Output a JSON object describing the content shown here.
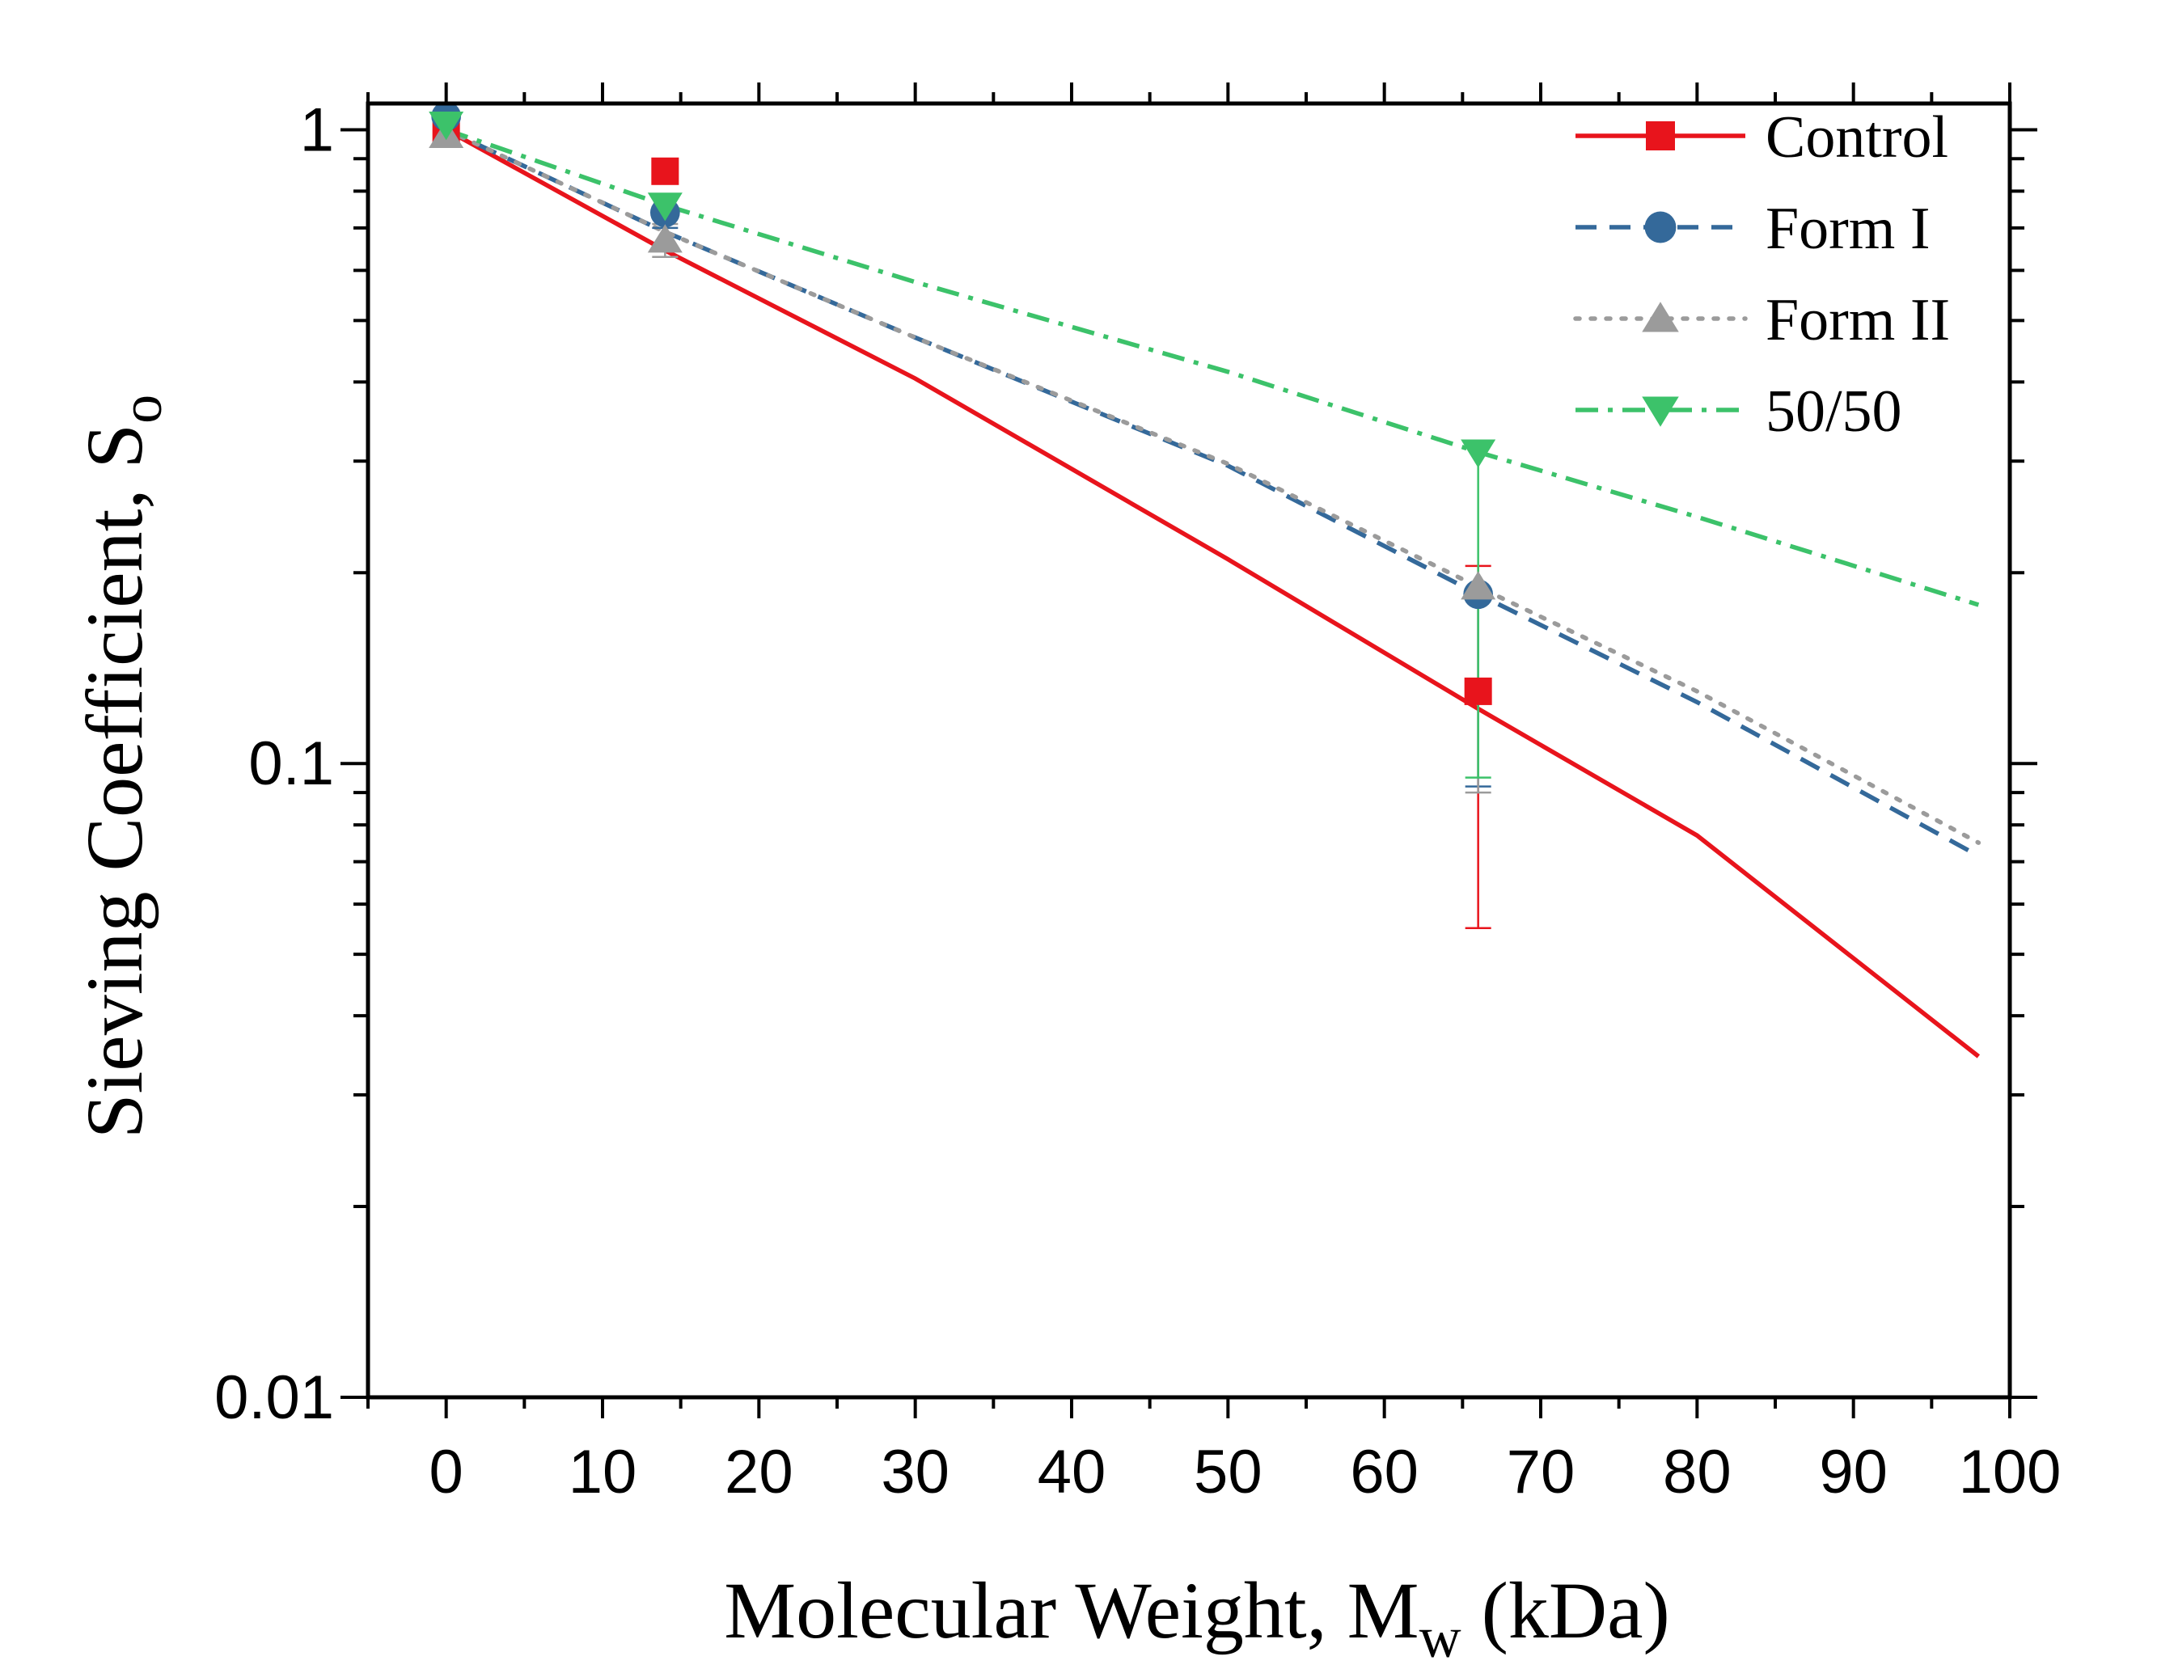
{
  "chart_data": {
    "type": "line",
    "title": "",
    "xlabel": {
      "main": "Molecular Weight, M",
      "sub": "w",
      "suffix": " (kDa)"
    },
    "ylabel": {
      "main": "Sieving Coefficient, S",
      "sub": "o"
    },
    "xlim": [
      -5,
      100
    ],
    "ylim": [
      0.01,
      1.1
    ],
    "yscale": "log",
    "x_ticks": [
      0,
      10,
      20,
      30,
      40,
      50,
      60,
      70,
      80,
      90,
      100
    ],
    "x_tick_labels": [
      "0",
      "10",
      "20",
      "30",
      "40",
      "50",
      "60",
      "70",
      "80",
      "90",
      "100"
    ],
    "y_ticks": [
      0.01,
      0.1,
      1
    ],
    "y_tick_labels": [
      "0.01",
      "0.1",
      "1"
    ],
    "legend_position": "top-right",
    "series": [
      {
        "name": "Control",
        "color": "#e8141c",
        "line_style": "solid",
        "marker": "square",
        "points": [
          {
            "x": 0,
            "y": 1.0,
            "err_low": 0.0,
            "err_high": 0.0
          },
          {
            "x": 14,
            "y": 0.86,
            "err_low": 0.03,
            "err_high": 0.04
          },
          {
            "x": 66,
            "y": 0.13,
            "err_low": 0.075,
            "err_high": 0.075
          }
        ],
        "fit": {
          "x": [
            0,
            14,
            30,
            50,
            66,
            80,
            98
          ],
          "y": [
            1.0,
            0.645,
            0.405,
            0.21,
            0.122,
            0.077,
            0.0345
          ]
        }
      },
      {
        "name": "Form I",
        "color": "#34699a",
        "line_style": "dashed",
        "marker": "circle",
        "points": [
          {
            "x": 0,
            "y": 1.05,
            "err_low": 0.0,
            "err_high": 0.0
          },
          {
            "x": 14,
            "y": 0.74,
            "err_low": 0.04,
            "err_high": 0.04
          },
          {
            "x": 66,
            "y": 0.185,
            "err_low": 0.093,
            "err_high": 0.0
          }
        ],
        "fit": {
          "x": [
            0,
            14,
            30,
            50,
            66,
            80,
            98
          ],
          "y": [
            1.0,
            0.69,
            0.47,
            0.295,
            0.185,
            0.125,
            0.0715
          ]
        }
      },
      {
        "name": "Form II",
        "color": "#9b9b9b",
        "line_style": "dotted",
        "marker": "triangle-up",
        "points": [
          {
            "x": 0,
            "y": 0.98,
            "err_low": 0.0,
            "err_high": 0.0
          },
          {
            "x": 14,
            "y": 0.67,
            "err_low": 0.04,
            "err_high": 0.04
          },
          {
            "x": 66,
            "y": 0.19,
            "err_low": 0.1,
            "err_high": 0.0
          }
        ],
        "fit": {
          "x": [
            0,
            14,
            30,
            50,
            66,
            80,
            98
          ],
          "y": [
            1.0,
            0.69,
            0.47,
            0.297,
            0.19,
            0.13,
            0.075
          ]
        }
      },
      {
        "name": "50/50",
        "color": "#3cc26a",
        "line_style": "dash-dot",
        "marker": "triangle-down",
        "points": [
          {
            "x": 0,
            "y": 1.02,
            "err_low": 0.0,
            "err_high": 0.0
          },
          {
            "x": 14,
            "y": 0.76,
            "err_low": 0.03,
            "err_high": 0.03
          },
          {
            "x": 66,
            "y": 0.31,
            "err_low": 0.215,
            "err_high": 0.0
          }
        ],
        "fit": {
          "x": [
            0,
            14,
            30,
            50,
            66,
            80,
            98
          ],
          "y": [
            1.0,
            0.76,
            0.575,
            0.415,
            0.31,
            0.245,
            0.178
          ]
        }
      }
    ]
  }
}
